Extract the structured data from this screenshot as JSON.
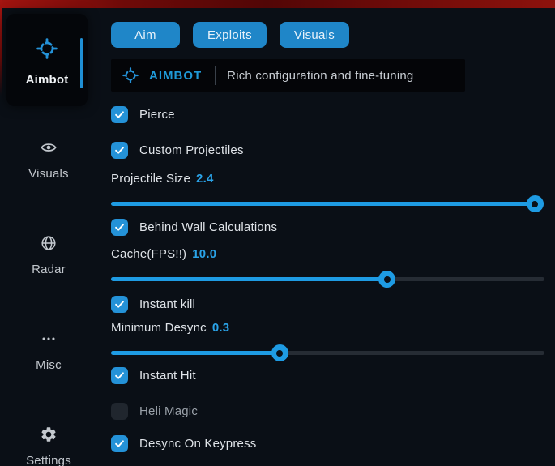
{
  "colors": {
    "accent": "#2492d8",
    "slider_fill": "#1e9be3",
    "background": "#0a0f16",
    "panel": "#04060a",
    "top_bar_red": "#8a0d08",
    "track_empty": "#262c34",
    "text_primary": "#dfe3e8",
    "text_muted": "#9aa1a9"
  },
  "sidebar": {
    "items": [
      {
        "label": "Aimbot",
        "icon": "crosshair-icon",
        "active": true
      },
      {
        "label": "Visuals",
        "icon": "eye-icon",
        "active": false
      },
      {
        "label": "Radar",
        "icon": "globe-icon",
        "active": false
      },
      {
        "label": "Misc",
        "icon": "ellipsis-icon",
        "active": false
      },
      {
        "label": "Settings",
        "icon": "gear-icon",
        "active": false
      }
    ]
  },
  "tabs": [
    {
      "label": "Aim"
    },
    {
      "label": "Exploits"
    },
    {
      "label": "Visuals"
    }
  ],
  "header": {
    "icon": "crosshair-icon",
    "title": "AIMBOT",
    "subtitle": "Rich configuration and fine-tuning"
  },
  "controls": [
    {
      "type": "checkbox",
      "label": "Pierce",
      "checked": true
    },
    {
      "type": "checkbox",
      "label": "Custom Projectiles",
      "checked": true
    },
    {
      "type": "slider",
      "label": "Projectile Size",
      "value": "2.4",
      "percent": 97.8
    },
    {
      "type": "checkbox",
      "label": "Behind Wall Calculations",
      "checked": true
    },
    {
      "type": "slider",
      "label": "Cache(FPS!!)",
      "value": "10.0",
      "percent": 63.7
    },
    {
      "type": "checkbox",
      "label": "Instant kill",
      "checked": true
    },
    {
      "type": "slider",
      "label": "Minimum Desync",
      "value": "0.3",
      "percent": 38.9
    },
    {
      "type": "checkbox",
      "label": "Instant Hit",
      "checked": true
    },
    {
      "type": "checkbox",
      "label": "Heli Magic",
      "checked": false
    },
    {
      "type": "checkbox",
      "label": "Desync On Keypress",
      "checked": true
    }
  ]
}
